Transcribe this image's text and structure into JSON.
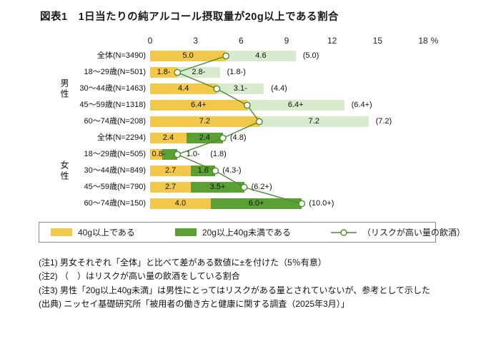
{
  "title": "図表1　1日当たりの純アルコール摂取量が20g以上である割合",
  "chart_data": {
    "type": "bar",
    "orientation": "horizontal",
    "title": "図表1　1日当たりの純アルコール摂取量が20g以上である割合",
    "axis": {
      "min": 0,
      "max": 18,
      "ticks": [
        0,
        3,
        6,
        9,
        12,
        15,
        18
      ],
      "unit_label": "%"
    },
    "colors": {
      "bar_40g": "#f2c84b",
      "bar_20_40": "#5ba033",
      "bar_20_40_male_ref": "#d9ebcf",
      "risk_line": "#4a8a2f"
    },
    "legend": [
      "40g以上である",
      "20g以上40g未満である",
      "（リスクが高い量の飲酒）"
    ],
    "groups": [
      {
        "label": "男性",
        "row_start": 0,
        "row_end": 4
      },
      {
        "label": "女性",
        "row_start": 5,
        "row_end": 9
      }
    ],
    "rows": [
      {
        "group": "男性",
        "category": "全体(N=3490)",
        "seg1": 5.0,
        "seg1_label": "5.0",
        "seg2": 4.6,
        "seg2_label": "4.6",
        "seg2_style": "light",
        "risk": 5.0,
        "risk_label": "(5.0)"
      },
      {
        "group": "男性",
        "category": "18〜29歳(N=501)",
        "seg1": 1.8,
        "seg1_label": "1.8-",
        "seg2": 2.8,
        "seg2_label": "2.8-",
        "seg2_style": "light",
        "risk": 1.8,
        "risk_label": "(1.8-)"
      },
      {
        "group": "男性",
        "category": "30〜44歳(N=1463)",
        "seg1": 4.4,
        "seg1_label": "4.4",
        "seg2": 3.1,
        "seg2_label": "3.1-",
        "seg2_style": "light",
        "risk": 4.4,
        "risk_label": "(4.4)"
      },
      {
        "group": "男性",
        "category": "45〜59歳(N=1318)",
        "seg1": 6.4,
        "seg1_label": "6.4+",
        "seg2": 6.4,
        "seg2_label": "6.4+",
        "seg2_style": "light",
        "risk": 6.4,
        "risk_label": "(6.4+)"
      },
      {
        "group": "男性",
        "category": "60〜74歳(N=208)",
        "seg1": 7.2,
        "seg1_label": "7.2",
        "seg2": 7.2,
        "seg2_label": "7.2",
        "seg2_style": "light",
        "risk": 7.2,
        "risk_label": "(7.2)"
      },
      {
        "group": "女性",
        "category": "全体(N=2294)",
        "seg1": 2.4,
        "seg1_label": "2.4",
        "seg2": 2.4,
        "seg2_label": "2.4",
        "seg2_style": "dark",
        "risk": 4.8,
        "risk_label": "(4.8)"
      },
      {
        "group": "女性",
        "category": "18〜29歳(N=505)",
        "seg1": 0.8,
        "seg1_label": "0.8-",
        "seg2": 1.0,
        "seg2_label": "1.0-",
        "seg2_style": "dark",
        "risk": 1.8,
        "risk_label": "(1.8)"
      },
      {
        "group": "女性",
        "category": "30〜44歳(N=849)",
        "seg1": 2.7,
        "seg1_label": "2.7",
        "seg2": 1.6,
        "seg2_label": "1.6",
        "seg2_style": "dark",
        "risk": 4.3,
        "risk_label": "(4.3-)"
      },
      {
        "group": "女性",
        "category": "45〜59歳(N=790)",
        "seg1": 2.7,
        "seg1_label": "2.7",
        "seg2": 3.5,
        "seg2_label": "3.5+",
        "seg2_style": "dark",
        "risk": 6.2,
        "risk_label": "(6.2+)"
      },
      {
        "group": "女性",
        "category": "60〜74歳(N=150)",
        "seg1": 4.0,
        "seg1_label": "4.0",
        "seg2": 6.0,
        "seg2_label": "6.0+",
        "seg2_style": "dark",
        "risk": 10.0,
        "risk_label": "(10.0+)"
      }
    ]
  },
  "notes": [
    "(注1) 男女それぞれ「全体」と比べて差がある数値に±を付けた（5％有意）",
    "(注2) （　）はリスクが高い量の飲酒をしている割合",
    "(注3) 男性「20g以上40g未満」は男性にとってはリスクがある量とされていないが、参考として示した",
    "(出典) ニッセイ基礎研究所「被用者の働き方と健康に関する調査（2025年3月）」"
  ]
}
